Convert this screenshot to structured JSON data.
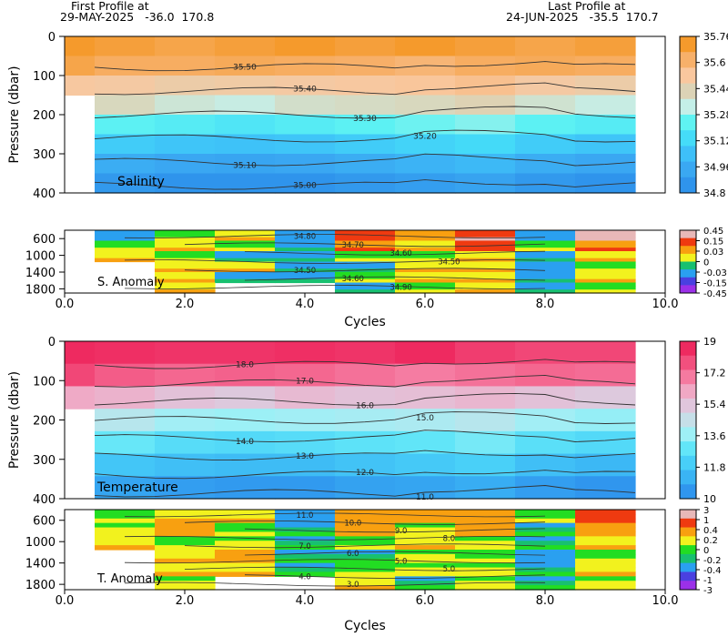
{
  "header": {
    "first_label": "First Profile at",
    "first_date": "29-MAY-2025",
    "first_lat": "-36.0",
    "first_lon": "170.8",
    "last_label": "Last Profile at",
    "last_date": "24-JUN-2025",
    "last_lat": "-35.5",
    "last_lon": "170.7"
  },
  "chart_data": [
    {
      "type": "heatmap",
      "panel_label": "Salinity",
      "xlabel": "Cycles",
      "ylabel": "Pressure (dbar)",
      "xlim": [
        0,
        10
      ],
      "x_ticks": [
        "0.0",
        "2.0",
        "4.0",
        "6.0",
        "8.0",
        "10.0"
      ],
      "upper_ylim": [
        0,
        400
      ],
      "upper_y_ticks": [
        "0",
        "100",
        "200",
        "300",
        "400"
      ],
      "lower_ylim": [
        400,
        1900
      ],
      "lower_y_ticks": [
        "600",
        "1000",
        "1400",
        "1800"
      ],
      "lower_label": "S. Anomaly",
      "colorbar": [
        "35.76",
        "35.6",
        "35.44",
        "35.28",
        "35.12",
        "34.96",
        "34.8"
      ],
      "colorbar_colors": [
        "#f59a2c",
        "#f7b06a",
        "#f9c79e",
        "#dcd3b6",
        "#c4efe8",
        "#5ff3f2",
        "#45dcf8",
        "#3ec0f8",
        "#3aa8f2",
        "#2f94ec"
      ],
      "anomaly_colorbar": [
        "0.45",
        "0.15",
        "0.03",
        "0",
        "-0.03",
        "-0.15",
        "-0.45"
      ],
      "contour_labels": [
        "35.50",
        "35.40",
        "35.30",
        "35.20",
        "35.10",
        "35.00"
      ],
      "anomaly_contour_labels": [
        "34.80",
        "34.70",
        "34.60",
        "34.50",
        "34.50",
        "34.60",
        "34.90"
      ],
      "upper_colors": [
        [
          35.62,
          35.6,
          35.58,
          35.6,
          35.62,
          35.6,
          35.62,
          35.6,
          35.58,
          35.6
        ],
        [
          35.58,
          35.55,
          35.55,
          35.56,
          35.55,
          35.54,
          35.52,
          35.55,
          35.56,
          35.55
        ],
        [
          35.45,
          35.44,
          35.42,
          35.43,
          35.44,
          35.45,
          35.46,
          35.48,
          35.44,
          35.42
        ],
        [
          null,
          35.36,
          35.32,
          35.3,
          35.34,
          35.35,
          35.36,
          35.38,
          35.33,
          35.3
        ],
        [
          null,
          35.2,
          35.18,
          35.16,
          35.18,
          35.2,
          35.22,
          35.24,
          35.2,
          35.18
        ],
        [
          null,
          35.08,
          35.06,
          35.05,
          35.06,
          35.08,
          35.1,
          35.12,
          35.08,
          35.06
        ],
        [
          null,
          34.98,
          34.96,
          34.95,
          34.96,
          34.98,
          35.0,
          35.02,
          34.98,
          34.96
        ],
        [
          null,
          34.9,
          34.88,
          34.88,
          34.88,
          34.9,
          34.92,
          34.94,
          34.9,
          34.88
        ]
      ],
      "anomaly_rows": [
        [
          -0.1,
          0.0,
          0.02,
          -0.05,
          0.2,
          0.05,
          0.3,
          -0.05,
          0.4
        ],
        [
          0.0,
          0.03,
          0.0,
          -0.03,
          0.15,
          0.03,
          0.2,
          0.0,
          0.15
        ],
        [
          0.03,
          0.0,
          -0.03,
          -0.03,
          0.0,
          0.0,
          0.03,
          -0.03,
          0.03
        ],
        [
          null,
          0.02,
          0.03,
          -0.03,
          -0.03,
          0.03,
          0.02,
          -0.05,
          0.0
        ],
        [
          null,
          0.03,
          -0.03,
          -0.03,
          0.0,
          0.02,
          0.03,
          -0.03,
          0.02
        ],
        [
          null,
          0.02,
          null,
          null,
          -0.03,
          0.0,
          0.02,
          -0.03,
          0.0
        ]
      ]
    },
    {
      "type": "heatmap",
      "panel_label": "Temperature",
      "xlabel": "Cycles",
      "ylabel": "Pressure (dbar)",
      "xlim": [
        0,
        10
      ],
      "x_ticks": [
        "0.0",
        "2.0",
        "4.0",
        "6.0",
        "8.0",
        "10.0"
      ],
      "upper_ylim": [
        0,
        400
      ],
      "upper_y_ticks": [
        "0",
        "100",
        "200",
        "300",
        "400"
      ],
      "lower_ylim": [
        400,
        1900
      ],
      "lower_y_ticks": [
        "600",
        "1000",
        "1400",
        "1800"
      ],
      "lower_label": "T. Anomaly",
      "colorbar": [
        "19",
        "17.2",
        "15.4",
        "13.6",
        "11.8",
        "10"
      ],
      "colorbar_colors": [
        "#ee2a60",
        "#f2507e",
        "#f57aa0",
        "#f0a8c4",
        "#e0c6dc",
        "#c6dfe8",
        "#9ef0f6",
        "#62e6f8",
        "#48cff8",
        "#3ab4f4",
        "#3096ee"
      ],
      "anomaly_colorbar": [
        "3",
        "1",
        "0.4",
        "0.2",
        "0",
        "-0.2",
        "-0.4",
        "-1",
        "-3"
      ],
      "contour_labels": [
        "18.0",
        "17.0",
        "16.0",
        "15.0",
        "14.0",
        "13.0",
        "12.0",
        "11.0"
      ],
      "anomaly_contour_labels": [
        "11.0",
        "10.0",
        "9.0",
        "8.0",
        "7.0",
        "6.0",
        "5.0",
        "5.0",
        "4.0",
        "3.0"
      ],
      "upper_colors": [
        [
          18.6,
          18.5,
          18.4,
          18.4,
          18.5,
          18.4,
          18.6,
          18.2,
          18.0,
          18.0
        ],
        [
          18.0,
          17.6,
          17.4,
          17.5,
          17.4,
          17.2,
          17.0,
          17.2,
          17.4,
          17.3
        ],
        [
          16.2,
          16.0,
          15.6,
          15.4,
          15.8,
          15.6,
          15.7,
          15.9,
          15.6,
          15.4
        ],
        [
          null,
          14.4,
          14.0,
          13.9,
          14.0,
          14.1,
          14.2,
          14.4,
          14.0,
          13.8
        ],
        [
          null,
          13.2,
          12.8,
          12.7,
          12.8,
          13.0,
          13.1,
          13.4,
          12.9,
          12.7
        ],
        [
          null,
          12.1,
          11.9,
          11.8,
          11.8,
          12.0,
          12.2,
          12.4,
          11.9,
          11.7
        ],
        [
          null,
          11.2,
          11.0,
          10.9,
          10.9,
          11.1,
          11.2,
          11.4,
          11.0,
          10.8
        ]
      ],
      "anomaly_rows": [
        [
          0.0,
          0.1,
          0.1,
          -0.2,
          0.5,
          0.2,
          0.4,
          0.0,
          1.0
        ],
        [
          0.05,
          0.2,
          0.0,
          -0.1,
          0.2,
          0.05,
          0.2,
          -0.1,
          0.3
        ],
        [
          0.1,
          0.0,
          0.05,
          -0.1,
          0.0,
          0.1,
          0.05,
          -0.1,
          0.1
        ],
        [
          null,
          0.1,
          0.3,
          -0.1,
          -0.1,
          0.05,
          0.0,
          -0.2,
          0.0
        ],
        [
          null,
          0.1,
          0.1,
          -0.1,
          0.0,
          0.05,
          0.05,
          -0.1,
          0.1
        ],
        [
          null,
          0.05,
          null,
          null,
          0.1,
          -0.1,
          0.05,
          -0.1,
          0.05
        ]
      ]
    }
  ]
}
